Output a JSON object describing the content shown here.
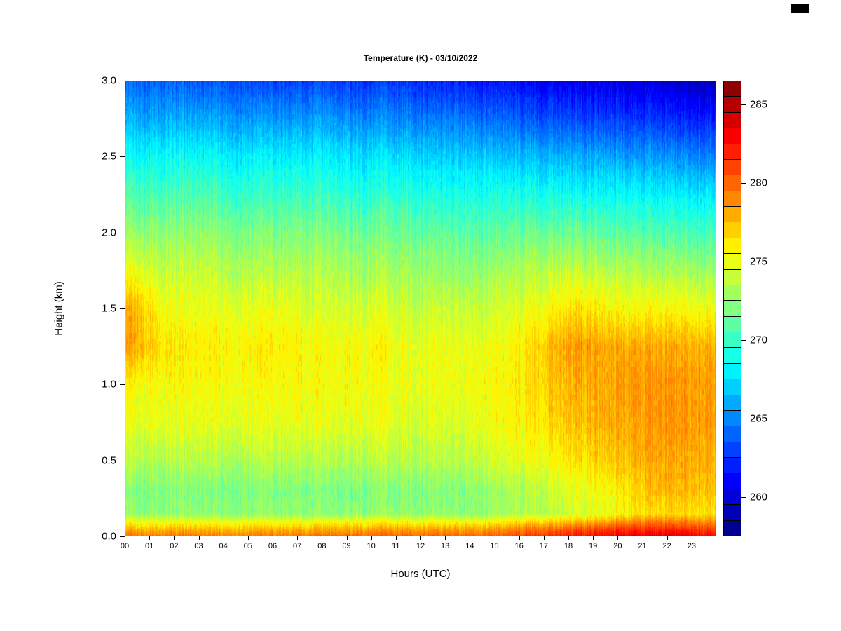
{
  "chart_data": {
    "type": "heatmap",
    "title": "Temperature (K) - 03/10/2022",
    "xlabel": "Hours (UTC)",
    "ylabel": "Height (km)",
    "x_range": [
      0,
      24
    ],
    "y_range": [
      0,
      3
    ],
    "x_tick_labels": [
      "00",
      "01",
      "02",
      "03",
      "04",
      "05",
      "06",
      "07",
      "08",
      "09",
      "10",
      "11",
      "12",
      "13",
      "14",
      "15",
      "16",
      "17",
      "18",
      "19",
      "20",
      "21",
      "22",
      "23"
    ],
    "y_ticks": [
      0,
      0.5,
      1,
      1.5,
      2,
      2.5,
      3
    ],
    "y_tick_labels": [
      "0.0",
      "0.5",
      "1.0",
      "1.5",
      "2.0",
      "2.5",
      "3.0"
    ],
    "colormap": "jet",
    "vmin": 257.5,
    "vmax": 286.5,
    "colorbar_ticks": [
      260,
      265,
      270,
      275,
      280,
      285
    ],
    "heights_km": [
      0.0,
      0.05,
      0.15,
      0.3,
      0.5,
      0.75,
      1.0,
      1.25,
      1.5,
      1.75,
      2.0,
      2.25,
      2.5,
      2.75,
      3.0
    ],
    "hours": [
      0,
      1,
      2,
      3,
      4,
      5,
      6,
      7,
      8,
      9,
      10,
      11,
      12,
      13,
      14,
      15,
      16,
      17,
      18,
      19,
      20,
      21,
      22,
      23
    ],
    "values": [
      [
        279.5,
        279.5,
        279.5,
        279.5,
        279.5,
        279.5,
        279.5,
        279.5,
        280,
        280,
        280,
        280,
        280,
        280,
        280,
        280.5,
        281.5,
        282,
        282.5,
        283,
        283.5,
        283.5,
        283.5,
        283
      ],
      [
        277.5,
        277.5,
        277.5,
        277.5,
        277.5,
        277.5,
        277.5,
        277.5,
        278,
        278,
        278,
        278,
        278,
        278,
        278,
        278.5,
        279.5,
        280,
        280.5,
        281,
        281.5,
        281.5,
        281.5,
        281
      ],
      [
        272.5,
        272.5,
        272.5,
        272.5,
        272.5,
        272.5,
        272.5,
        272.5,
        272.5,
        272.5,
        272.5,
        272.5,
        272.5,
        272.5,
        272.5,
        273,
        273.5,
        274,
        274.5,
        275,
        276,
        276.5,
        276.5,
        276.5
      ],
      [
        272,
        272,
        272,
        272,
        272,
        272,
        272,
        272,
        272,
        272,
        272,
        272,
        272,
        272,
        272.5,
        273,
        273.5,
        274.5,
        275,
        275.5,
        276.5,
        277.5,
        277.5,
        277.5
      ],
      [
        273.5,
        273.5,
        273.5,
        273.5,
        273.5,
        273.5,
        273.5,
        273.5,
        273.5,
        273.5,
        273.5,
        273.5,
        273.5,
        273.5,
        274,
        274.5,
        275,
        276,
        276.5,
        277,
        277.5,
        278,
        278,
        278
      ],
      [
        275,
        275,
        275,
        275,
        275,
        275,
        275,
        275,
        275,
        275,
        275,
        274.5,
        274.5,
        274.5,
        275,
        275.5,
        276,
        277,
        277.5,
        278,
        278,
        278.5,
        278.5,
        278.5
      ],
      [
        275.5,
        275.5,
        275.5,
        275.5,
        275.5,
        275.5,
        275.5,
        275.5,
        275.5,
        275.5,
        275,
        275,
        275,
        275,
        275.5,
        275.5,
        276.5,
        277.5,
        278,
        278,
        278.5,
        278.5,
        278.5,
        278.5
      ],
      [
        278,
        276.5,
        276,
        276,
        276,
        276,
        276,
        275.5,
        275.5,
        275.5,
        275.5,
        275,
        275,
        275,
        275,
        275.5,
        276.5,
        278,
        278.5,
        278,
        278,
        278,
        278,
        278
      ],
      [
        277.5,
        275.5,
        275,
        275,
        275,
        275,
        275,
        274.5,
        274.5,
        274.5,
        274.5,
        274,
        274,
        274,
        274,
        274.5,
        275,
        276,
        276.5,
        276,
        275.5,
        275.5,
        275.5,
        275.5
      ],
      [
        275,
        274,
        274,
        274,
        273.5,
        273.5,
        273.5,
        273.5,
        273.5,
        273,
        273,
        273,
        272.5,
        272.5,
        272.5,
        273,
        273.5,
        274,
        274,
        273.5,
        273.5,
        273,
        273,
        273
      ],
      [
        272.5,
        272.5,
        272.5,
        272.5,
        272,
        272,
        272,
        272,
        272,
        271.5,
        271.5,
        271.5,
        271,
        271,
        271,
        271,
        271.5,
        271.5,
        271.5,
        271,
        271,
        270.5,
        270.5,
        270.5
      ],
      [
        270.5,
        270.5,
        270.5,
        270.5,
        270,
        270,
        270,
        270,
        270,
        269.5,
        269.5,
        269.5,
        269,
        269,
        269,
        269,
        269,
        269,
        268.5,
        268.5,
        268.5,
        268,
        268,
        268
      ],
      [
        268.5,
        268.5,
        268.5,
        268.5,
        268,
        268,
        268,
        268,
        268,
        267.5,
        267.5,
        267.5,
        267,
        267,
        267,
        266.5,
        266.5,
        266.5,
        266,
        266,
        265.5,
        265.5,
        265,
        265
      ],
      [
        266,
        266,
        266,
        266,
        265.5,
        265.5,
        265.5,
        265.5,
        265.5,
        265,
        265,
        265,
        264.5,
        264.5,
        264,
        264,
        263.5,
        263.5,
        263,
        263,
        262.5,
        262.5,
        262,
        262
      ],
      [
        264,
        264,
        263.5,
        263.5,
        263.5,
        263,
        263,
        263,
        263,
        262.5,
        262.5,
        262.5,
        262,
        262,
        261.5,
        261.5,
        261,
        261,
        260.5,
        260.5,
        260,
        260,
        259.5,
        259.5
      ]
    ]
  },
  "decorations": {
    "corner_mark_color": "#000000"
  }
}
